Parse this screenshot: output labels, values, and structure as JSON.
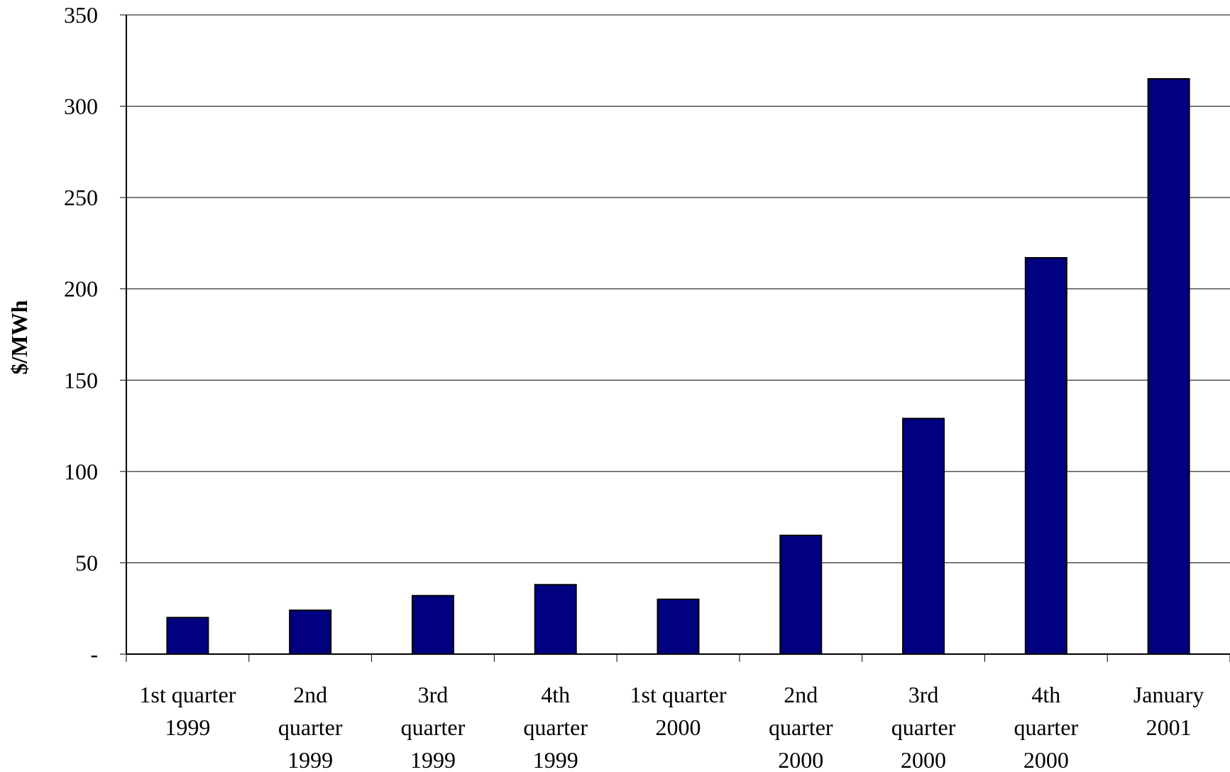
{
  "chart_data": {
    "type": "bar",
    "title": "",
    "xlabel": "",
    "ylabel": "$/MWh",
    "categories": [
      [
        "1st quarter",
        "1999"
      ],
      [
        "2nd",
        "quarter",
        "1999"
      ],
      [
        "3rd",
        "quarter",
        "1999"
      ],
      [
        "4th",
        "quarter",
        "1999"
      ],
      [
        "1st quarter",
        "2000"
      ],
      [
        "2nd",
        "quarter",
        "2000"
      ],
      [
        "3rd",
        "quarter",
        "2000"
      ],
      [
        "4th",
        "quarter",
        "2000"
      ],
      [
        "January",
        "2001"
      ]
    ],
    "values": [
      20,
      24,
      32,
      38,
      30,
      65,
      129,
      217,
      315
    ],
    "ylim": [
      0,
      350
    ],
    "yticks": [
      0,
      50,
      100,
      150,
      200,
      250,
      300,
      350
    ],
    "ytick_labels": [
      "-",
      "50",
      "100",
      "150",
      "200",
      "250",
      "300",
      "350"
    ],
    "grid": true,
    "legend": "none",
    "bar_color": "#000080"
  }
}
